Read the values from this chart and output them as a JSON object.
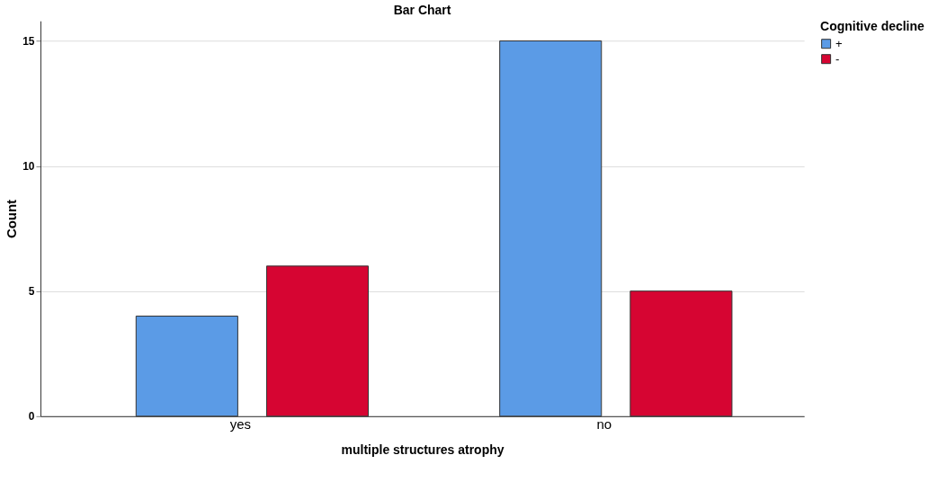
{
  "chart_data": {
    "type": "bar",
    "title": "Bar Chart",
    "xlabel": "multiple structures atrophy",
    "ylabel": "Count",
    "legend_title": "Cognitive decline",
    "categories": [
      "yes",
      "no"
    ],
    "series": [
      {
        "name": "+",
        "color": "#5b9be6",
        "values": [
          4,
          15
        ]
      },
      {
        "name": "-",
        "color": "#d60532",
        "values": [
          6,
          5
        ]
      }
    ],
    "ylim": [
      0,
      15.8
    ],
    "yticks": [
      0,
      5,
      10,
      15
    ],
    "grid": "y",
    "legend": "top right"
  }
}
